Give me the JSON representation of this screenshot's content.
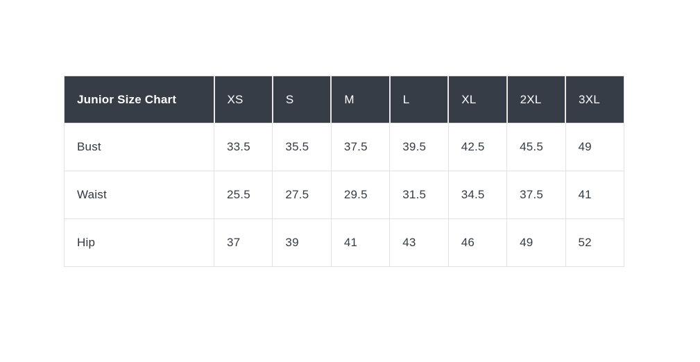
{
  "chart_data": {
    "type": "table",
    "title": "Junior Size Chart",
    "columns": [
      "XS",
      "S",
      "M",
      "L",
      "XL",
      "2XL",
      "3XL"
    ],
    "rows": [
      {
        "label": "Bust",
        "values": [
          33.5,
          35.5,
          37.5,
          39.5,
          42.5,
          45.5,
          49
        ]
      },
      {
        "label": "Waist",
        "values": [
          25.5,
          27.5,
          29.5,
          31.5,
          34.5,
          37.5,
          41
        ]
      },
      {
        "label": "Hip",
        "values": [
          37,
          39,
          41,
          43,
          46,
          49,
          52
        ]
      }
    ],
    "layout": {
      "header_bg": "#363d47",
      "header_text_color": "#fdfdfd",
      "body_text_color": "#333b45",
      "border_color": "#e1e1e1",
      "page_bg": "#ffffff"
    }
  }
}
